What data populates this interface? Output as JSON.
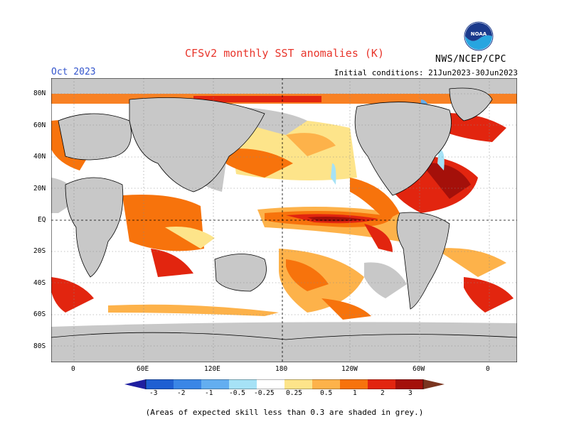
{
  "title": "CFSv2 monthly SST anomalies (K)",
  "month": "Oct 2023",
  "initial_conditions": "Initial conditions: 21Jun2023-30Jun2023",
  "org": "NWS/NCEP/CPC",
  "logo_text": "NOAA",
  "note": "(Areas of expected skill less than 0.3 are shaded in grey.)",
  "lat_labels": [
    "80N",
    "60N",
    "40N",
    "20N",
    "EQ",
    "20S",
    "40S",
    "60S",
    "80S"
  ],
  "lon_labels": [
    "0",
    "60E",
    "120E",
    "180",
    "120W",
    "60W",
    "0"
  ],
  "colorbar": {
    "labels": [
      "-3",
      "-2",
      "-1",
      "-0.5",
      "-0.25",
      "0.25",
      "0.5",
      "1",
      "2",
      "3"
    ],
    "colors": [
      "#1f1fa0",
      "#1e5fd2",
      "#3a86e6",
      "#63aef0",
      "#a6e2f6",
      "#ffffff",
      "#fde48a",
      "#fdb24a",
      "#f7730c",
      "#e2250f",
      "#a4100a",
      "#7a3520"
    ]
  },
  "colors": {
    "land": "#c8c8c8",
    "grid": "#888888",
    "neutral_ocean": "#ffffff"
  }
}
